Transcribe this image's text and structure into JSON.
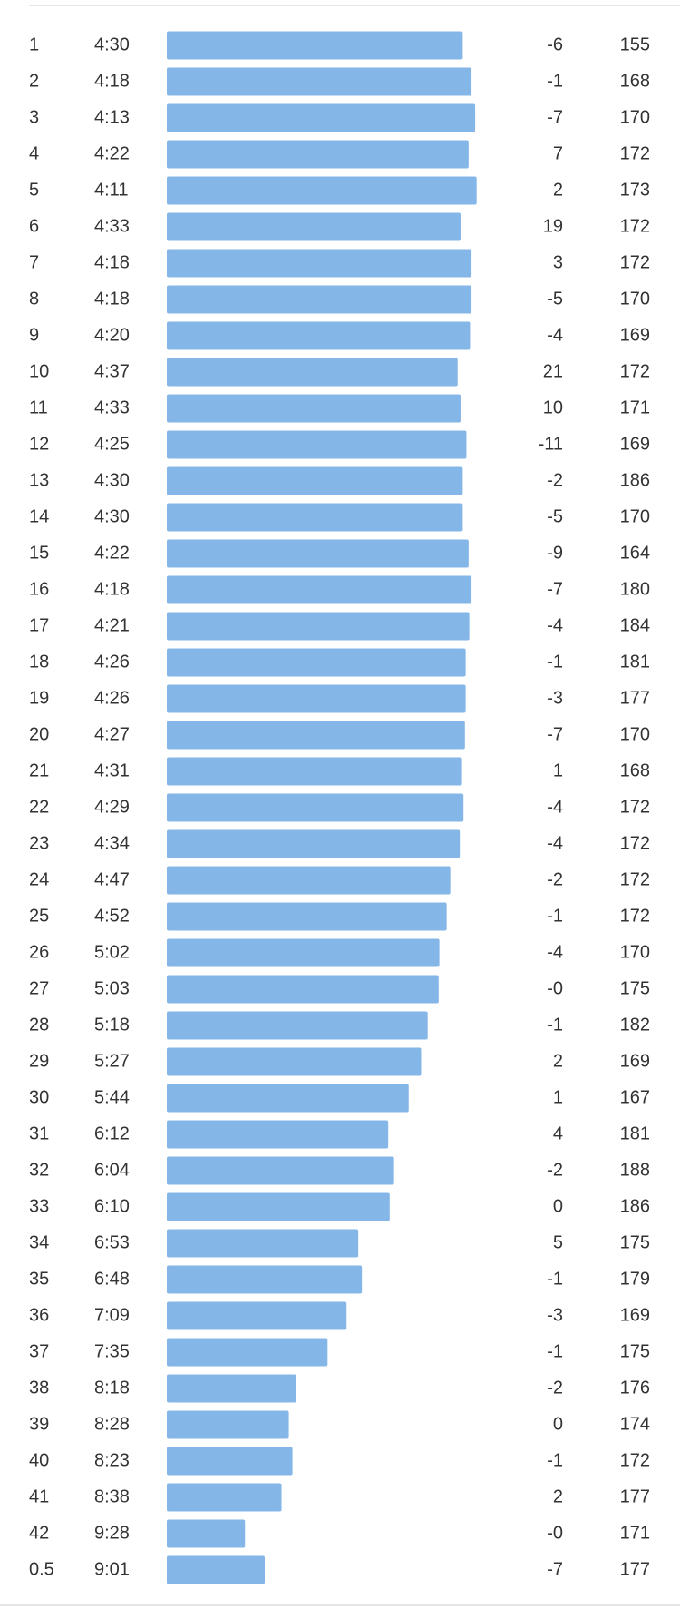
{
  "splits": {
    "bar_xlim": [
      675,
      0
    ],
    "bar_color": "#85b6e8",
    "rows": [
      {
        "km": 1,
        "pace": "4:30",
        "elev": "-6",
        "hr": 155
      },
      {
        "km": 2,
        "pace": "4:18",
        "elev": "-1",
        "hr": 168
      },
      {
        "km": 3,
        "pace": "4:13",
        "elev": "-7",
        "hr": 170
      },
      {
        "km": 4,
        "pace": "4:22",
        "elev": "7",
        "hr": 172
      },
      {
        "km": 5,
        "pace": "4:11",
        "elev": "2",
        "hr": 173
      },
      {
        "km": 6,
        "pace": "4:33",
        "elev": "19",
        "hr": 172
      },
      {
        "km": 7,
        "pace": "4:18",
        "elev": "3",
        "hr": 172
      },
      {
        "km": 8,
        "pace": "4:18",
        "elev": "-5",
        "hr": 170
      },
      {
        "km": 9,
        "pace": "4:20",
        "elev": "-4",
        "hr": 169
      },
      {
        "km": 10,
        "pace": "4:37",
        "elev": "21",
        "hr": 172
      },
      {
        "km": 11,
        "pace": "4:33",
        "elev": "10",
        "hr": 171
      },
      {
        "km": 12,
        "pace": "4:25",
        "elev": "-11",
        "hr": 169
      },
      {
        "km": 13,
        "pace": "4:30",
        "elev": "-2",
        "hr": 186
      },
      {
        "km": 14,
        "pace": "4:30",
        "elev": "-5",
        "hr": 170
      },
      {
        "km": 15,
        "pace": "4:22",
        "elev": "-9",
        "hr": 164
      },
      {
        "km": 16,
        "pace": "4:18",
        "elev": "-7",
        "hr": 180
      },
      {
        "km": 17,
        "pace": "4:21",
        "elev": "-4",
        "hr": 184
      },
      {
        "km": 18,
        "pace": "4:26",
        "elev": "-1",
        "hr": 181
      },
      {
        "km": 19,
        "pace": "4:26",
        "elev": "-3",
        "hr": 177
      },
      {
        "km": 20,
        "pace": "4:27",
        "elev": "-7",
        "hr": 170
      },
      {
        "km": 21,
        "pace": "4:31",
        "elev": "1",
        "hr": 168
      },
      {
        "km": 22,
        "pace": "4:29",
        "elev": "-4",
        "hr": 172
      },
      {
        "km": 23,
        "pace": "4:34",
        "elev": "-4",
        "hr": 172
      },
      {
        "km": 24,
        "pace": "4:47",
        "elev": "-2",
        "hr": 172
      },
      {
        "km": 25,
        "pace": "4:52",
        "elev": "-1",
        "hr": 172
      },
      {
        "km": 26,
        "pace": "5:02",
        "elev": "-4",
        "hr": 170
      },
      {
        "km": 27,
        "pace": "5:03",
        "elev": "-0",
        "hr": 175
      },
      {
        "km": 28,
        "pace": "5:18",
        "elev": "-1",
        "hr": 182
      },
      {
        "km": 29,
        "pace": "5:27",
        "elev": "2",
        "hr": 169
      },
      {
        "km": 30,
        "pace": "5:44",
        "elev": "1",
        "hr": 167
      },
      {
        "km": 31,
        "pace": "6:12",
        "elev": "4",
        "hr": 181
      },
      {
        "km": 32,
        "pace": "6:04",
        "elev": "-2",
        "hr": 188
      },
      {
        "km": 33,
        "pace": "6:10",
        "elev": "0",
        "hr": 186
      },
      {
        "km": 34,
        "pace": "6:53",
        "elev": "5",
        "hr": 175
      },
      {
        "km": 35,
        "pace": "6:48",
        "elev": "-1",
        "hr": 179
      },
      {
        "km": 36,
        "pace": "7:09",
        "elev": "-3",
        "hr": 169
      },
      {
        "km": 37,
        "pace": "7:35",
        "elev": "-1",
        "hr": 175
      },
      {
        "km": 38,
        "pace": "8:18",
        "elev": "-2",
        "hr": 176
      },
      {
        "km": 39,
        "pace": "8:28",
        "elev": "0",
        "hr": 174
      },
      {
        "km": 40,
        "pace": "8:23",
        "elev": "-1",
        "hr": 172
      },
      {
        "km": 41,
        "pace": "8:38",
        "elev": "2",
        "hr": 177
      },
      {
        "km": 42,
        "pace": "9:28",
        "elev": "-0",
        "hr": 171
      },
      {
        "km": 0.5,
        "pace": "9:01",
        "elev": "-7",
        "hr": 177
      }
    ]
  }
}
